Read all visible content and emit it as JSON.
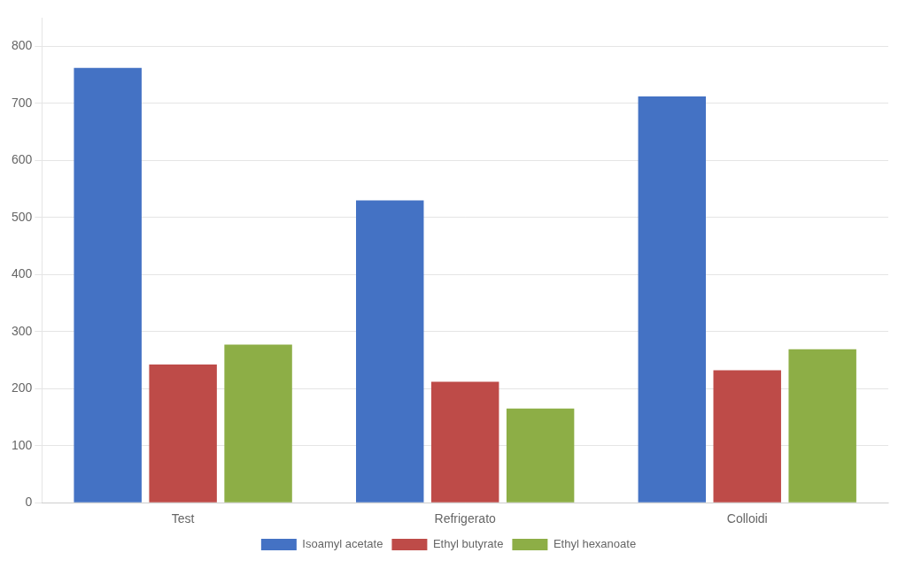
{
  "chart_data": {
    "type": "bar",
    "categories": [
      "Test",
      "Refrigerato",
      "Colloidi"
    ],
    "series": [
      {
        "name": "Isoamyl acetate",
        "color": "#4472C4",
        "values": [
          762,
          530,
          712
        ]
      },
      {
        "name": "Ethyl butyrate",
        "color": "#BE4B48",
        "values": [
          242,
          212,
          232
        ]
      },
      {
        "name": "Ethyl hexanoate",
        "color": "#8DAE46",
        "values": [
          277,
          165,
          269
        ]
      }
    ],
    "ylim": [
      0,
      850
    ],
    "yticks": [
      0,
      100,
      200,
      300,
      400,
      500,
      600,
      700,
      800
    ],
    "grid": true,
    "legend": "bottom"
  }
}
